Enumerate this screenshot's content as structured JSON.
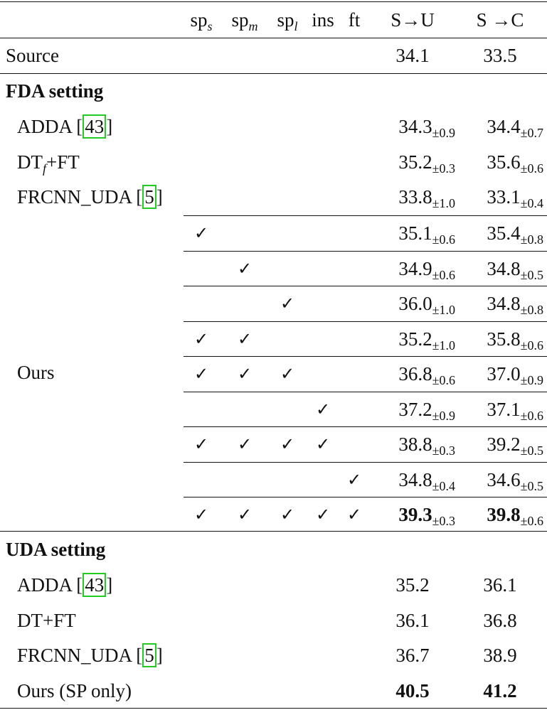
{
  "header": {
    "sp_s": "sp",
    "sp_s_sub": "s",
    "sp_m": "sp",
    "sp_m_sub": "m",
    "sp_l": "sp",
    "sp_l_sub": "l",
    "ins": "ins",
    "ft": "ft",
    "s_to_u": "S→U",
    "s_to_c": "S →C"
  },
  "source": {
    "label": "Source",
    "s_to_u": "34.1",
    "s_to_c": "33.5"
  },
  "fda": {
    "title": "FDA setting",
    "baselines": [
      {
        "name": "ADDA [",
        "cite": "43",
        "close": "]",
        "su": "34.3",
        "su_pm": "±0.9",
        "sc": "34.4",
        "sc_pm": "±0.7"
      },
      {
        "name": "DT",
        "sub": "f",
        "after": "+FT",
        "su": "35.2",
        "su_pm": "±0.3",
        "sc": "35.6",
        "sc_pm": "±0.6"
      },
      {
        "name": "FRCNN_UDA [",
        "cite": "5",
        "close": "]",
        "su": "33.8",
        "su_pm": "±1.0",
        "sc": "33.1",
        "sc_pm": "±0.4"
      }
    ],
    "ours_label": "Ours",
    "check_glyph": "✓",
    "ablation": [
      {
        "checks": [
          true,
          false,
          false,
          false,
          false
        ],
        "su": "35.1",
        "su_pm": "±0.6",
        "sc": "35.4",
        "sc_pm": "±0.8"
      },
      {
        "checks": [
          false,
          true,
          false,
          false,
          false
        ],
        "su": "34.9",
        "su_pm": "±0.6",
        "sc": "34.8",
        "sc_pm": "±0.5"
      },
      {
        "checks": [
          false,
          false,
          true,
          false,
          false
        ],
        "su": "36.0",
        "su_pm": "±1.0",
        "sc": "34.8",
        "sc_pm": "±0.8"
      },
      {
        "checks": [
          true,
          true,
          false,
          false,
          false
        ],
        "su": "35.2",
        "su_pm": "±1.0",
        "sc": "35.8",
        "sc_pm": "±0.6"
      },
      {
        "checks": [
          true,
          true,
          true,
          false,
          false
        ],
        "su": "36.8",
        "su_pm": "±0.6",
        "sc": "37.0",
        "sc_pm": "±0.9"
      },
      {
        "checks": [
          false,
          false,
          false,
          true,
          false
        ],
        "su": "37.2",
        "su_pm": "±0.9",
        "sc": "37.1",
        "sc_pm": "±0.6"
      },
      {
        "checks": [
          true,
          true,
          true,
          true,
          false
        ],
        "su": "38.8",
        "su_pm": "±0.3",
        "sc": "39.2",
        "sc_pm": "±0.5"
      },
      {
        "checks": [
          false,
          false,
          false,
          false,
          true
        ],
        "su": "34.8",
        "su_pm": "±0.4",
        "sc": "34.6",
        "sc_pm": "±0.5"
      },
      {
        "checks": [
          true,
          true,
          true,
          true,
          true
        ],
        "su": "39.3",
        "su_pm": "±0.3",
        "sc": "39.8",
        "sc_pm": "±0.6",
        "bold": true
      }
    ]
  },
  "uda": {
    "title": "UDA setting",
    "rows": [
      {
        "name": "ADDA [",
        "cite": "43",
        "close": "]",
        "su": "35.2",
        "sc": "36.1"
      },
      {
        "name": "DT+FT",
        "su": "36.1",
        "sc": "36.8"
      },
      {
        "name": "FRCNN_UDA [",
        "cite": "5",
        "close": "]",
        "su": "36.7",
        "sc": "38.9"
      },
      {
        "name": "Ours (SP only)",
        "su": "40.5",
        "sc": "41.2",
        "bold": true
      }
    ]
  },
  "colors": {
    "text": "#111111",
    "cite_border": "#22cc22",
    "background": "#ffffff"
  }
}
